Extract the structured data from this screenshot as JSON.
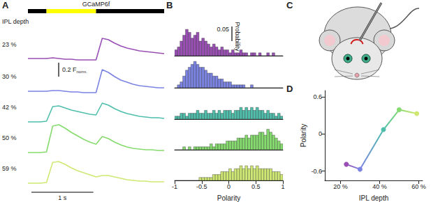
{
  "chart_data": [
    {
      "panel": "A",
      "type": "line",
      "legend_title": "IPL depth",
      "stimulus": {
        "label": "GCaMP6f",
        "on": 0.3,
        "off": 1.1
      },
      "x": [
        0,
        0.1,
        0.2,
        0.3,
        0.4,
        0.5,
        0.6,
        0.7,
        0.8,
        0.9,
        1.0,
        1.1,
        1.2,
        1.3,
        1.4,
        1.5,
        1.6,
        1.7,
        1.8,
        1.9,
        2.0,
        2.1,
        2.2
      ],
      "series": [
        {
          "name": "23 %",
          "color": "#9a4fb5",
          "values": [
            0.03,
            0.03,
            0.03,
            0.03,
            0.04,
            0.03,
            0.02,
            0.02,
            0.01,
            0.01,
            0.01,
            0.01,
            0.32,
            0.3,
            0.25,
            0.21,
            0.18,
            0.16,
            0.14,
            0.13,
            0.12,
            0.11,
            0.1
          ]
        },
        {
          "name": "30 %",
          "color": "#7b83e3",
          "values": [
            0.02,
            0.02,
            0.02,
            0.02,
            0.03,
            0.03,
            0.02,
            0.01,
            0.01,
            0.0,
            0.0,
            0.0,
            0.33,
            0.29,
            0.23,
            0.18,
            0.15,
            0.12,
            0.1,
            0.09,
            0.08,
            0.07,
            0.07
          ]
        },
        {
          "name": "42 %",
          "color": "#4fbfac",
          "values": [
            0.02,
            0.02,
            0.02,
            0.03,
            0.24,
            0.25,
            0.22,
            0.19,
            0.17,
            0.15,
            0.13,
            0.12,
            0.29,
            0.26,
            0.21,
            0.17,
            0.14,
            0.12,
            0.1,
            0.09,
            0.08,
            0.08,
            0.07
          ]
        },
        {
          "name": "50 %",
          "color": "#86db6e",
          "values": [
            0.02,
            0.02,
            0.02,
            0.03,
            0.4,
            0.42,
            0.37,
            0.31,
            0.26,
            0.21,
            0.17,
            0.14,
            0.25,
            0.22,
            0.17,
            0.13,
            0.1,
            0.08,
            0.07,
            0.06,
            0.06,
            0.05,
            0.05
          ]
        },
        {
          "name": "59 %",
          "color": "#cfe873",
          "values": [
            0.02,
            0.02,
            0.02,
            0.03,
            0.32,
            0.33,
            0.29,
            0.24,
            0.2,
            0.17,
            0.14,
            0.11,
            0.13,
            0.13,
            0.11,
            0.09,
            0.07,
            0.06,
            0.05,
            0.05,
            0.04,
            0.04,
            0.04
          ]
        }
      ],
      "xlim": [
        0,
        2.2
      ],
      "ylim": [
        -0.05,
        0.45
      ],
      "tick_labels": false,
      "scale_bars": {
        "y": {
          "value": 0.2,
          "label": "0.2 F",
          "subscript": "norm."
        },
        "x": {
          "value": 1,
          "label": "1 s"
        }
      }
    },
    {
      "panel": "B",
      "type": "histogram",
      "xlabel": "Polarity",
      "bins": [
        -1,
        -0.95,
        -0.9,
        -0.85,
        -0.8,
        -0.75,
        -0.7,
        -0.65,
        -0.6,
        -0.55,
        -0.5,
        -0.45,
        -0.4,
        -0.35,
        -0.3,
        -0.25,
        -0.2,
        -0.15,
        -0.1,
        -0.05,
        0,
        0.05,
        0.1,
        0.15,
        0.2,
        0.25,
        0.3,
        0.35,
        0.4,
        0.45,
        0.5,
        0.55,
        0.6,
        0.65,
        0.7,
        0.75,
        0.8,
        0.85,
        0.9,
        0.95,
        1
      ],
      "series": [
        {
          "name": "23 %",
          "color": "#9a4fb5",
          "values": [
            0.02,
            0.03,
            0.05,
            0.07,
            0.09,
            0.08,
            0.06,
            0.07,
            0.08,
            0.05,
            0.06,
            0.05,
            0.04,
            0.03,
            0.04,
            0.03,
            0.02,
            0.03,
            0.02,
            0.02,
            0.01,
            0.02,
            0.01,
            0.01,
            0.02,
            0.01,
            0.01,
            0.0,
            0.01,
            0.01,
            0.0,
            0.01,
            0.0,
            0.0,
            0.01,
            0.0,
            0.01,
            0.0,
            0.0,
            0.0
          ]
        },
        {
          "name": "30 %",
          "color": "#7b83e3",
          "values": [
            0.0,
            0.01,
            0.02,
            0.04,
            0.06,
            0.07,
            0.08,
            0.09,
            0.08,
            0.07,
            0.07,
            0.06,
            0.05,
            0.05,
            0.04,
            0.04,
            0.03,
            0.03,
            0.02,
            0.02,
            0.02,
            0.01,
            0.01,
            0.01,
            0.01,
            0.01,
            0.0,
            0.0,
            0.01,
            0.0,
            0.0,
            0.0,
            0.0,
            0.0,
            0.0,
            0.0,
            0.0,
            0.0,
            0.0,
            0.0
          ]
        },
        {
          "name": "42 %",
          "color": "#4fbfac",
          "values": [
            0.01,
            0.01,
            0.02,
            0.02,
            0.01,
            0.02,
            0.02,
            0.02,
            0.03,
            0.02,
            0.02,
            0.03,
            0.02,
            0.02,
            0.03,
            0.02,
            0.03,
            0.02,
            0.03,
            0.03,
            0.03,
            0.02,
            0.03,
            0.03,
            0.04,
            0.03,
            0.04,
            0.03,
            0.04,
            0.03,
            0.04,
            0.03,
            0.03,
            0.02,
            0.03,
            0.02,
            0.02,
            0.01,
            0.02,
            0.01
          ]
        },
        {
          "name": "50 %",
          "color": "#86db6e",
          "values": [
            0.0,
            0.0,
            0.0,
            0.01,
            0.0,
            0.01,
            0.0,
            0.01,
            0.01,
            0.01,
            0.01,
            0.01,
            0.01,
            0.02,
            0.01,
            0.02,
            0.02,
            0.02,
            0.02,
            0.03,
            0.03,
            0.03,
            0.03,
            0.04,
            0.04,
            0.04,
            0.05,
            0.04,
            0.05,
            0.05,
            0.05,
            0.06,
            0.06,
            0.05,
            0.07,
            0.06,
            0.05,
            0.04,
            0.03,
            0.02
          ]
        },
        {
          "name": "59 %",
          "color": "#cfe873",
          "values": [
            0.0,
            0.0,
            0.0,
            0.0,
            0.0,
            0.0,
            0.0,
            0.0,
            0.0,
            0.01,
            0.01,
            0.01,
            0.01,
            0.01,
            0.02,
            0.02,
            0.02,
            0.03,
            0.03,
            0.03,
            0.04,
            0.03,
            0.04,
            0.04,
            0.05,
            0.04,
            0.05,
            0.04,
            0.05,
            0.04,
            0.05,
            0.04,
            0.04,
            0.04,
            0.04,
            0.04,
            0.03,
            0.03,
            0.03,
            0.02
          ]
        }
      ],
      "xlim": [
        -1,
        1
      ],
      "xticks": [
        -1,
        -0.5,
        0,
        0.5,
        1
      ],
      "ylim": [
        0,
        0.1
      ],
      "tick_labels": "x",
      "scale_bar": {
        "value": 0.05,
        "label": "0.05",
        "title": "Probability"
      }
    },
    {
      "panel": "C",
      "type": "illustration"
    },
    {
      "panel": "D",
      "type": "line",
      "xlabel": "IPL depth",
      "ylabel": "Polarity",
      "x": [
        23,
        30,
        42,
        50,
        59
      ],
      "values": [
        -0.49,
        -0.57,
        0.07,
        0.39,
        0.33
      ],
      "colors": [
        "#9a4fb5",
        "#7b83e3",
        "#4fbfac",
        "#86db6e",
        "#cfe873"
      ],
      "marker": "circle",
      "xlim": [
        12,
        62
      ],
      "xticks": [
        {
          "value": 20,
          "label": "20 %"
        },
        {
          "value": 40,
          "label": "40 %"
        },
        {
          "value": 60,
          "label": "60 %"
        }
      ],
      "ylim": [
        -0.75,
        0.7
      ],
      "yticks": [
        -0.6,
        0,
        0.6
      ]
    }
  ]
}
